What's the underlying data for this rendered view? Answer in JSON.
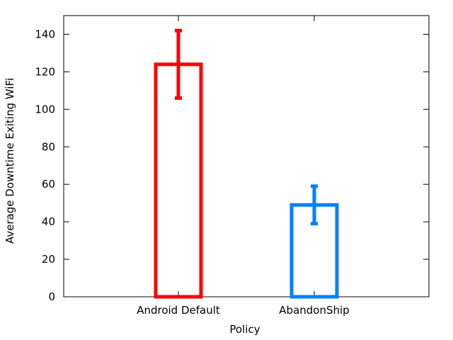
{
  "chart_data": {
    "type": "bar",
    "title": "",
    "xlabel": "Policy",
    "ylabel": "Average Downtime Exiting WiFi",
    "categories": [
      "Android Default",
      "AbandonShip"
    ],
    "values": [
      124,
      49
    ],
    "error_low": [
      106,
      39
    ],
    "error_high": [
      142,
      59
    ],
    "bar_colors": [
      "#ff0000",
      "#0080ff"
    ],
    "ylim": [
      0,
      150
    ],
    "yticks": [
      0,
      20,
      40,
      60,
      80,
      100,
      120,
      140
    ],
    "bar_style": "hollow outline",
    "grid": false,
    "legend": "none"
  }
}
